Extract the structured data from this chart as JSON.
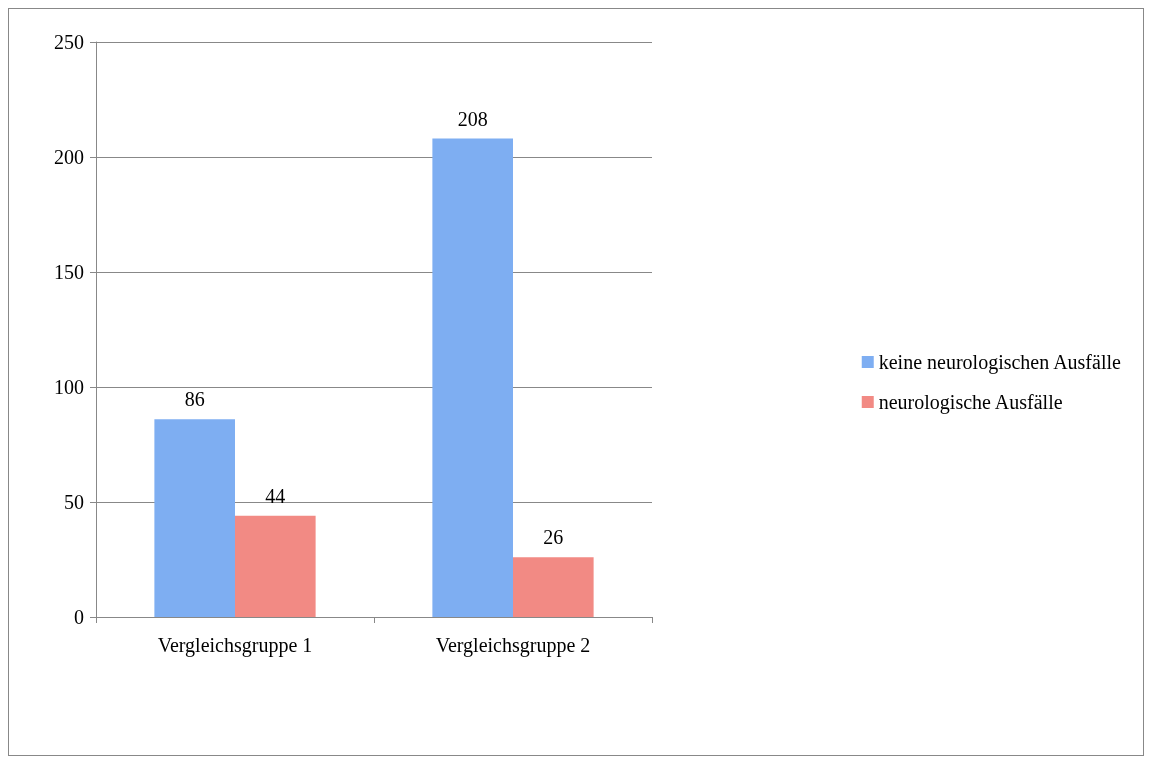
{
  "chart_data": {
    "type": "bar",
    "categories": [
      "Vergleichsgruppe 1",
      "Vergleichsgruppe 2"
    ],
    "series": [
      {
        "name": "keine neurologischen Ausfälle",
        "color": "#7eaef2",
        "values": [
          86,
          208
        ]
      },
      {
        "name": "neurologische Ausfälle",
        "color": "#f28a84",
        "values": [
          44,
          26
        ]
      }
    ],
    "ylim": [
      0,
      250
    ],
    "yticks": [
      0,
      50,
      100,
      150,
      200,
      250
    ],
    "grid": "y",
    "legend": "right",
    "data_labels": true
  }
}
